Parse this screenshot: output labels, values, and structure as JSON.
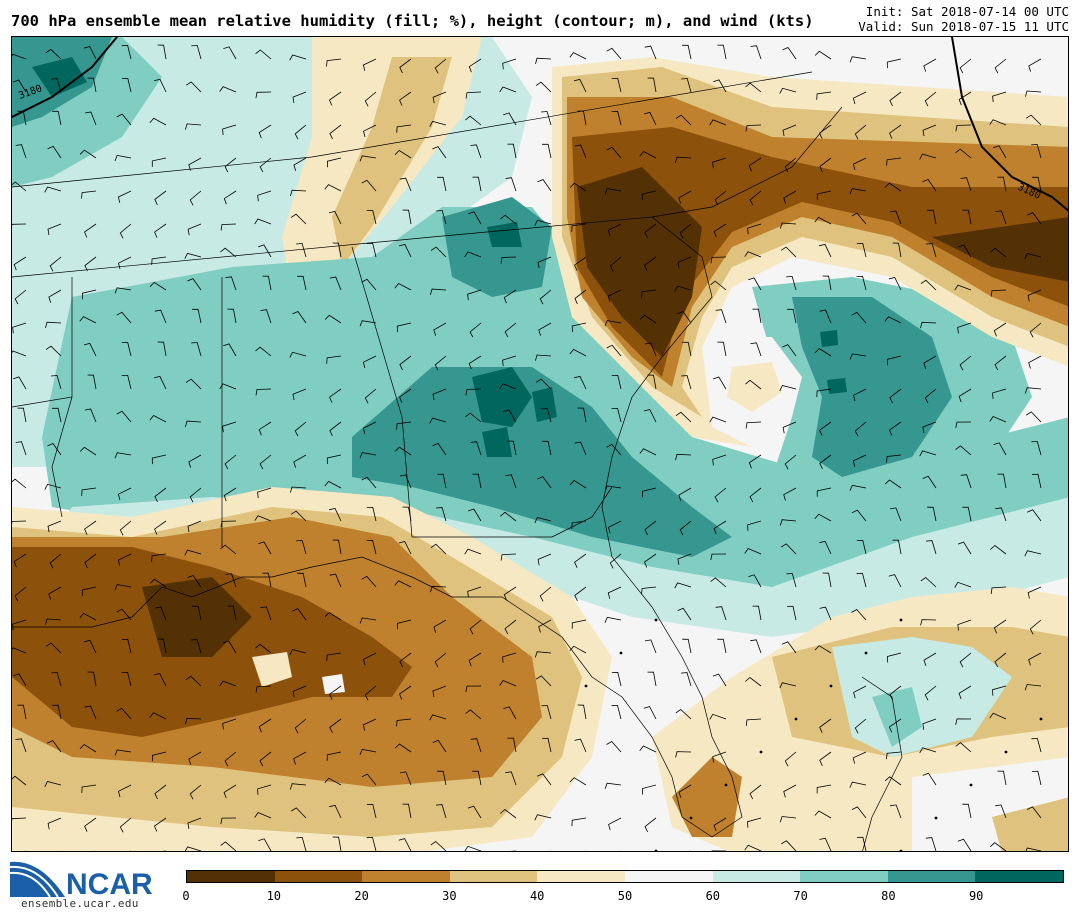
{
  "header": {
    "title": "700 hPa ensemble mean relative humidity (fill; %), height (contour; m), and wind (kts)",
    "init": "Init: Sat 2018-07-14 00 UTC",
    "valid": "Valid: Sun 2018-07-15 11 UTC"
  },
  "map": {
    "contour_labels": [
      "3180",
      "3180"
    ],
    "colors": {
      "c0": "#543005",
      "c1": "#8c510a",
      "c2": "#bf812d",
      "c3": "#dfc27d",
      "c4": "#f6e8c3",
      "c5": "#f5f5f5",
      "c6": "#c7eae5",
      "c7": "#80cdc1",
      "c8": "#35978f",
      "c9": "#01665e"
    }
  },
  "colorbar": {
    "ticks": [
      "0",
      "10",
      "20",
      "30",
      "40",
      "50",
      "60",
      "70",
      "80",
      "90"
    ],
    "colors": [
      "#543005",
      "#8c510a",
      "#bf812d",
      "#dfc27d",
      "#f6e8c3",
      "#f5f5f5",
      "#c7eae5",
      "#80cdc1",
      "#35978f",
      "#01665e"
    ]
  },
  "logo": {
    "name": "NCAR",
    "url_text": "ensemble.ucar.edu",
    "color": "#1a5fa8"
  }
}
